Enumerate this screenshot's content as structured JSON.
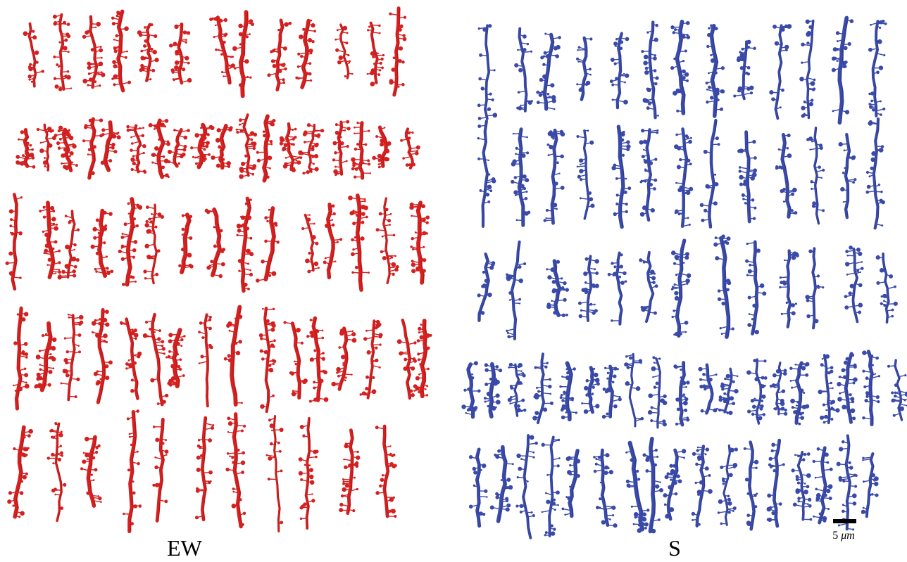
{
  "panels": [
    {
      "label": "EW"
    },
    {
      "label": "S"
    }
  ],
  "scale_bar": {
    "value": "5",
    "unit": "μm"
  }
}
